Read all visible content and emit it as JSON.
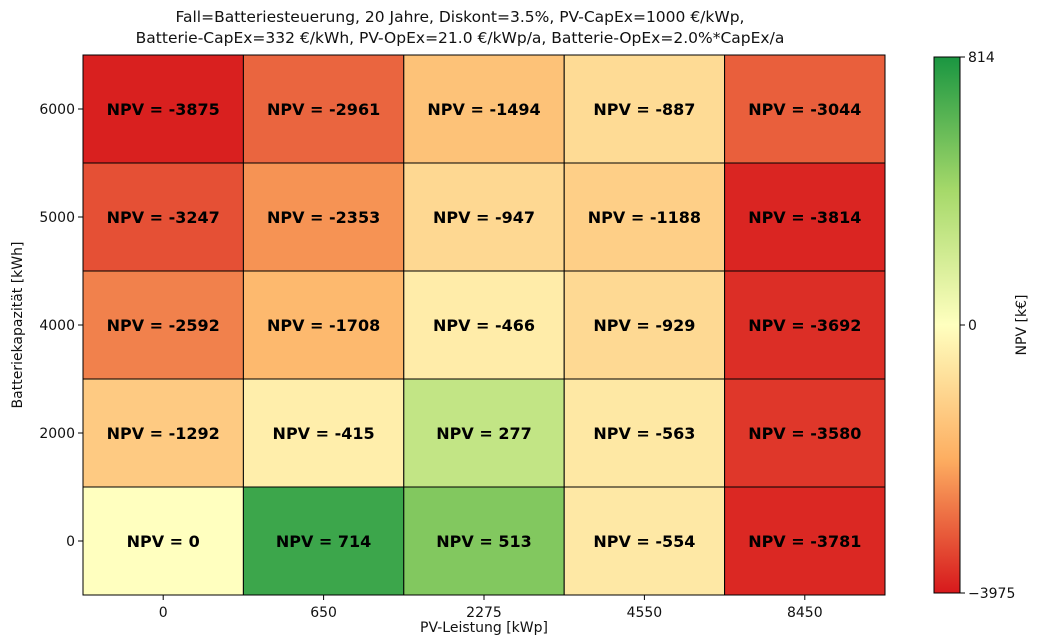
{
  "chart_data": {
    "type": "heatmap",
    "title_lines": [
      "Fall=Batteriesteuerung, 20 Jahre, Diskont=3.5%, PV-CapEx=1000 €/kWp,",
      "Batterie-CapEx=332 €/kWh, PV-OpEx=21.0 €/kWp/a, Batterie-OpEx=2.0%*CapEx/a"
    ],
    "xlabel": "PV-Leistung [kWp]",
    "ylabel": "Batteriekapazität [kWh]",
    "x_categories": [
      "0",
      "650",
      "2275",
      "4550",
      "8450"
    ],
    "y_categories": [
      "6000",
      "5000",
      "4000",
      "2000",
      "0"
    ],
    "cell_prefix": "NPV = ",
    "values": [
      [
        -3875,
        -2961,
        -1494,
        -887,
        -3044
      ],
      [
        -3247,
        -2353,
        -947,
        -1188,
        -3814
      ],
      [
        -2592,
        -1708,
        -466,
        -929,
        -3692
      ],
      [
        -1292,
        -415,
        277,
        -563,
        -3580
      ],
      [
        0,
        714,
        513,
        -554,
        -3781
      ]
    ],
    "colorbar": {
      "label": "NPV [k€]",
      "min": -3975,
      "center": 0,
      "max": 814,
      "ticks": [
        "814",
        "0",
        "−3975"
      ],
      "colormap": [
        "#d7191c",
        "#fdae61",
        "#ffffbf",
        "#a6d96a",
        "#1a9641"
      ]
    }
  }
}
